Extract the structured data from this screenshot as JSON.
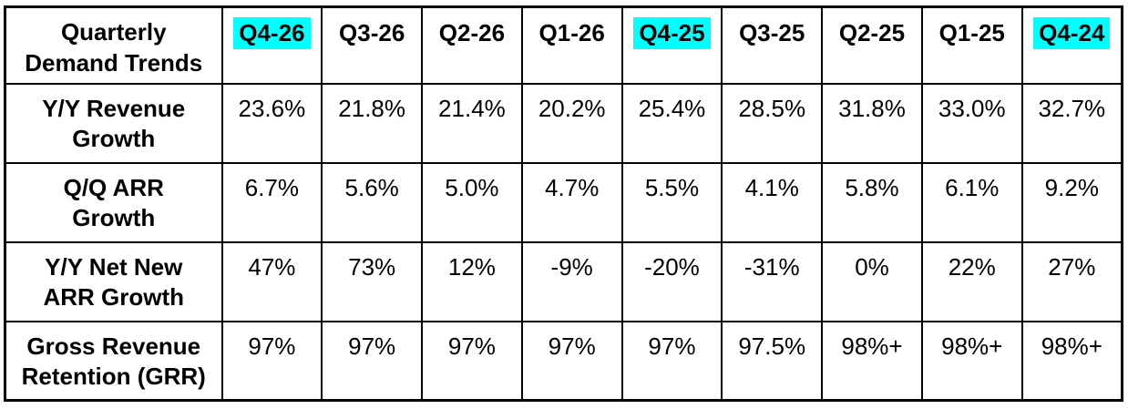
{
  "chart_data": {
    "type": "table",
    "title": "Quarterly Demand Trends",
    "corner_display": "Quarterly\nDemand Trends",
    "highlight_color": "#00ffff",
    "highlighted_columns": [
      "Q4-26",
      "Q4-25",
      "Q4-24"
    ],
    "columns": [
      {
        "label": "Q4-26",
        "highlighted": true
      },
      {
        "label": "Q3-26",
        "highlighted": false
      },
      {
        "label": "Q2-26",
        "highlighted": false
      },
      {
        "label": "Q1-26",
        "highlighted": false
      },
      {
        "label": "Q4-25",
        "highlighted": true
      },
      {
        "label": "Q3-25",
        "highlighted": false
      },
      {
        "label": "Q2-25",
        "highlighted": false
      },
      {
        "label": "Q1-25",
        "highlighted": false
      },
      {
        "label": "Q4-24",
        "highlighted": true
      }
    ],
    "rows": [
      {
        "label": "Y/Y Revenue Growth",
        "display_label": "Y/Y Revenue\nGrowth",
        "values": [
          "23.6%",
          "21.8%",
          "21.4%",
          "20.2%",
          "25.4%",
          "28.5%",
          "31.8%",
          "33.0%",
          "32.7%"
        ]
      },
      {
        "label": "Q/Q ARR Growth",
        "display_label": "Q/Q ARR\nGrowth",
        "values": [
          "6.7%",
          "5.6%",
          "5.0%",
          "4.7%",
          "5.5%",
          "4.1%",
          "5.8%",
          "6.1%",
          "9.2%"
        ]
      },
      {
        "label": "Y/Y Net New ARR Growth",
        "display_label": "Y/Y Net New\nARR Growth",
        "values": [
          "47%",
          "73%",
          "12%",
          "-9%",
          "-20%",
          "-31%",
          "0%",
          "22%",
          "27%"
        ]
      },
      {
        "label": "Gross Revenue Retention (GRR)",
        "display_label": "Gross Revenue\nRetention (GRR)",
        "values": [
          "97%",
          "97%",
          "97%",
          "97%",
          "97%",
          "97.5%",
          "98%+",
          "98%+",
          "98%+"
        ]
      }
    ]
  },
  "colors": {
    "background": "#ffffff",
    "border": "#000000",
    "text": "#000000",
    "highlight": "#00ffff"
  }
}
